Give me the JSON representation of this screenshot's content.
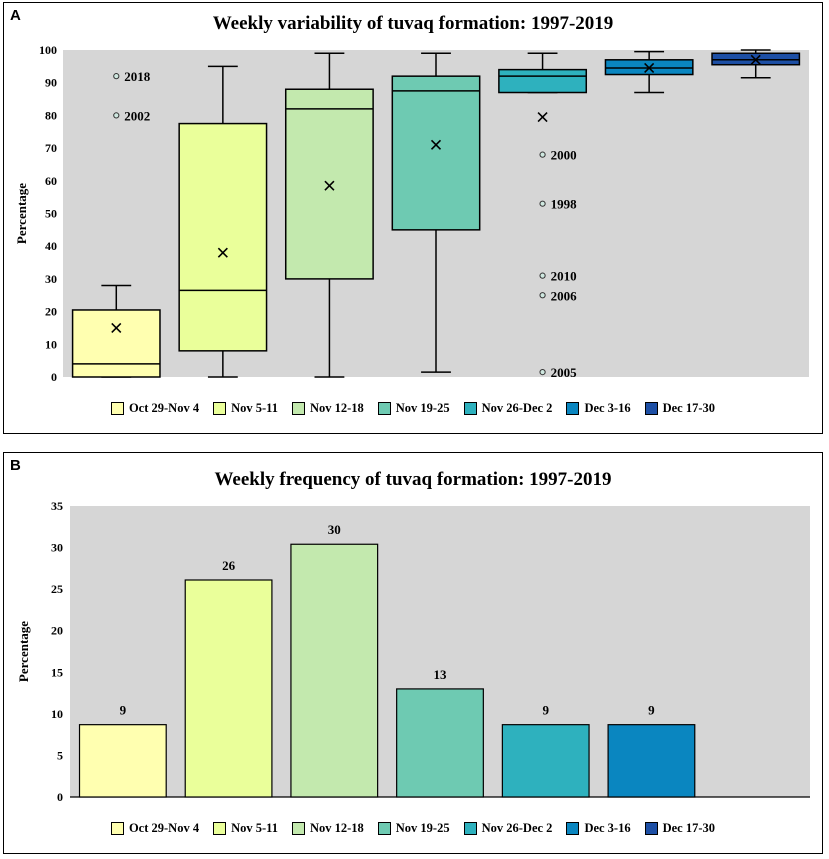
{
  "colors": {
    "plot_bg": "#d6d6d6",
    "series": [
      "#ffffb0",
      "#eaff9a",
      "#c3e9ae",
      "#6ecab2",
      "#2eb1be",
      "#0a86c0",
      "#1d4fa5"
    ]
  },
  "legend": [
    "Oct 29-Nov 4",
    "Nov 5-11",
    "Nov 12-18",
    "Nov 19-25",
    "Nov 26-Dec 2",
    "Dec 3-16",
    "Dec 17-30"
  ],
  "chart_data": [
    {
      "panel": "A",
      "type": "box",
      "title": "Weekly variability of tuvaq formation: 1997-2019",
      "ylabel": "Percentage",
      "ylim": [
        0,
        100
      ],
      "yticks": [
        "0",
        "10",
        "20",
        "30",
        "40",
        "50",
        "60",
        "70",
        "80",
        "90",
        "100"
      ],
      "categories": [
        "Oct 29-Nov 4",
        "Nov 5-11",
        "Nov 12-18",
        "Nov 19-25",
        "Nov 26-Dec 2",
        "Dec 3-16",
        "Dec 17-30"
      ],
      "boxes": [
        {
          "min": 0,
          "q1": 0,
          "median": 4,
          "q3": 20.5,
          "max": 28,
          "mean": 15
        },
        {
          "min": 0,
          "q1": 8,
          "median": 26.5,
          "q3": 77.5,
          "max": 95,
          "mean": 38
        },
        {
          "min": 0,
          "q1": 30,
          "median": 82,
          "q3": 88,
          "max": 99,
          "mean": 58.5
        },
        {
          "min": 1.5,
          "q1": 45,
          "median": 87.5,
          "q3": 92,
          "max": 99,
          "mean": 71
        },
        {
          "min": 87,
          "q1": 87,
          "median": 92,
          "q3": 94,
          "max": 99,
          "mean": 79.5
        },
        {
          "min": 87,
          "q1": 92.5,
          "median": 94.5,
          "q3": 97,
          "max": 99.5,
          "mean": 94.5
        },
        {
          "min": 91.5,
          "q1": 95.5,
          "median": 97,
          "q3": 99,
          "max": 100,
          "mean": 97
        }
      ],
      "outliers": [
        {
          "category": 0,
          "value": 92,
          "label": "2018"
        },
        {
          "category": 0,
          "value": 80,
          "label": "2002"
        },
        {
          "category": 4,
          "value": 68,
          "label": "2000"
        },
        {
          "category": 4,
          "value": 53,
          "label": "1998"
        },
        {
          "category": 4,
          "value": 31,
          "label": "2010"
        },
        {
          "category": 4,
          "value": 25,
          "label": "2006"
        },
        {
          "category": 4,
          "value": 1.5,
          "label": "2005"
        }
      ]
    },
    {
      "panel": "B",
      "type": "bar",
      "title": "Weekly frequency of tuvaq formation: 1997-2019",
      "ylabel": "Percentage",
      "ylim": [
        0,
        35
      ],
      "yticks": [
        "0",
        "5",
        "10",
        "15",
        "20",
        "25",
        "30",
        "35"
      ],
      "categories": [
        "Oct 29-Nov 4",
        "Nov 5-11",
        "Nov 12-18",
        "Nov 19-25",
        "Nov 26-Dec 2",
        "Dec 3-16",
        "Dec 17-30"
      ],
      "values": [
        8.7,
        26.1,
        30.4,
        13.0,
        8.7,
        8.7,
        0
      ],
      "data_labels": [
        "9",
        "26",
        "30",
        "13",
        "9",
        "9",
        ""
      ]
    }
  ]
}
